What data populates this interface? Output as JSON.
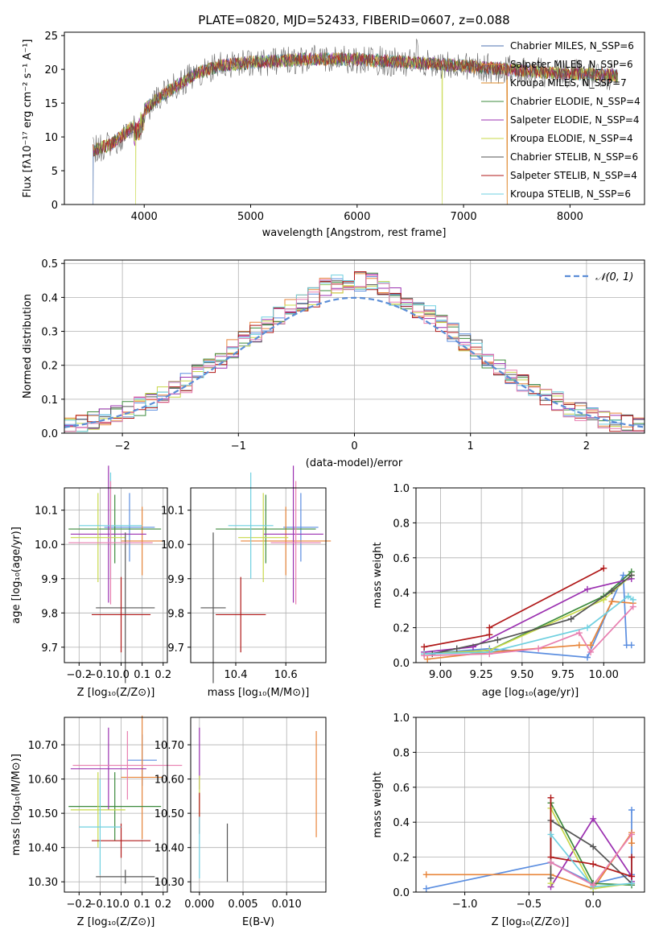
{
  "figure_title": "PLATE=0820, MJD=52433, FIBERID=0607, z=0.088",
  "colors": {
    "chabrier_miles": "#4c72b0",
    "salpeter_miles": "#e8853a",
    "kroupa_miles": "#dd8a2a",
    "chabrier_elodie": "#3d8b3d",
    "salpeter_elodie": "#9b30b0",
    "kroupa_elodie": "#c8d84a",
    "chabrier_stelib": "#555555",
    "salpeter_stelib": "#b01818",
    "kroupa_stelib": "#6fd0e0",
    "normal_curve": "#5b8dd6",
    "extra_pink": "#e87fb0",
    "extra_blue": "#5b8ee0"
  },
  "chart_data": [
    {
      "id": "spectrum",
      "type": "line",
      "title": "PLATE=0820, MJD=52433, FIBERID=0607, z=0.088",
      "xlabel": "wavelength [Angstrom, rest frame]",
      "ylabel": "Flux [fλ10⁻¹⁷ erg cm⁻² s⁻¹ A⁻¹]",
      "xlim": [
        3250,
        8700
      ],
      "ylim": [
        0,
        25.5
      ],
      "xticks": [
        4000,
        5000,
        6000,
        7000,
        8000
      ],
      "yticks": [
        0,
        5,
        10,
        15,
        20,
        25
      ],
      "grid": false,
      "legend_position": "top-right",
      "legend": [
        {
          "label": "Chabrier MILES, N_SSP=6",
          "color": "#4c72b0"
        },
        {
          "label": "Salpeter MILES, N_SSP=6",
          "color": "#e8853a"
        },
        {
          "label": "Kroupa MILES, N_SSP=7",
          "color": "#dd8a2a"
        },
        {
          "label": "Chabrier ELODIE, N_SSP=4",
          "color": "#3d8b3d"
        },
        {
          "label": "Salpeter ELODIE, N_SSP=4",
          "color": "#9b30b0"
        },
        {
          "label": "Kroupa ELODIE, N_SSP=4",
          "color": "#c8d84a"
        },
        {
          "label": "Chabrier STELIB, N_SSP=6",
          "color": "#555555"
        },
        {
          "label": "Salpeter STELIB, N_SSP=4",
          "color": "#b01818"
        },
        {
          "label": "Kroupa STELIB, N_SSP=6",
          "color": "#6fd0e0"
        }
      ],
      "continuum": [
        [
          3520,
          8.0
        ],
        [
          3700,
          9.0
        ],
        [
          3850,
          11.0
        ],
        [
          3950,
          12.5
        ],
        [
          4000,
          14.0
        ],
        [
          4150,
          16.0
        ],
        [
          4300,
          17.5
        ],
        [
          4500,
          19.5
        ],
        [
          4700,
          20.5
        ],
        [
          5000,
          21.0
        ],
        [
          5500,
          21.5
        ],
        [
          6000,
          21.5
        ],
        [
          6500,
          21.0
        ],
        [
          7000,
          20.5
        ],
        [
          7400,
          20.0
        ],
        [
          7800,
          19.5
        ],
        [
          8200,
          19.3
        ],
        [
          8450,
          19.0
        ]
      ]
    },
    {
      "id": "residuals",
      "type": "line",
      "xlabel": "(data-model)/error",
      "ylabel": "Normed distribution",
      "xlim": [
        -2.5,
        2.5
      ],
      "ylim": [
        0,
        0.51
      ],
      "xticks": [
        -2,
        -1,
        0,
        1,
        2
      ],
      "yticks": [
        0.0,
        0.1,
        0.2,
        0.3,
        0.4,
        0.5
      ],
      "grid": true,
      "legend_position": "top-right",
      "legend": [
        {
          "label": "𝒩(0, 1)",
          "color": "#5b8dd6",
          "style": "dashed"
        }
      ]
    },
    {
      "id": "age_vs_Z",
      "type": "errorbar",
      "xlabel": "Z [log₁₀(Z/Z⊙)]",
      "ylabel": "age  [log₁₀(age/yr)]",
      "xlim": [
        -0.27,
        0.22
      ],
      "ylim": [
        9.655,
        10.165
      ],
      "xticks": [
        -0.2,
        -0.1,
        0.0,
        0.1,
        0.2
      ],
      "yticks": [
        9.7,
        9.8,
        9.9,
        10.0,
        10.1
      ],
      "grid": true,
      "points": [
        {
          "x": 0.04,
          "y": 10.05,
          "xerr": 0.12,
          "yerr": 0.1,
          "color": "#5b8ee0"
        },
        {
          "x": 0.1,
          "y": 10.01,
          "xerr": 0.1,
          "yerr": 0.1,
          "color": "#e8853a"
        },
        {
          "x": -0.03,
          "y": 10.045,
          "xerr": 0.22,
          "yerr": 0.1,
          "color": "#3d8b3d"
        },
        {
          "x": -0.06,
          "y": 10.03,
          "xerr": 0.18,
          "yerr": 0.2,
          "color": "#9b30b0"
        },
        {
          "x": -0.11,
          "y": 10.02,
          "xerr": 0.13,
          "yerr": 0.13,
          "color": "#c8d84a"
        },
        {
          "x": 0.02,
          "y": 9.815,
          "xerr": 0.14,
          "yerr": 0.22,
          "color": "#555555"
        },
        {
          "x": 0.0,
          "y": 9.795,
          "xerr": 0.14,
          "yerr": 0.11,
          "color": "#b01818"
        },
        {
          "x": -0.05,
          "y": 10.055,
          "xerr": 0.15,
          "yerr": 0.155,
          "color": "#6fd0e0"
        },
        {
          "x": -0.05,
          "y": 10.005,
          "xerr": 0.2,
          "yerr": 0.18,
          "color": "#e87fb0"
        }
      ]
    },
    {
      "id": "age_vs_mass",
      "type": "errorbar",
      "xlabel": "mass [log₁₀(M/M⊙)]",
      "ylabel": "",
      "xlim": [
        10.22,
        10.76
      ],
      "ylim": [
        9.655,
        10.165
      ],
      "xticks": [
        10.4,
        10.6
      ],
      "yticks": [
        9.7,
        9.8,
        9.9,
        10.0,
        10.1
      ],
      "grid": true,
      "points": [
        {
          "x": 10.66,
          "y": 10.05,
          "xerr": 0.07,
          "yerr": 0.1,
          "color": "#5b8ee0"
        },
        {
          "x": 10.6,
          "y": 10.01,
          "xerr": 0.18,
          "yerr": 0.1,
          "color": "#e8853a"
        },
        {
          "x": 10.52,
          "y": 10.045,
          "xerr": 0.2,
          "yerr": 0.1,
          "color": "#3d8b3d"
        },
        {
          "x": 10.63,
          "y": 10.03,
          "xerr": 0.12,
          "yerr": 0.2,
          "color": "#9b30b0"
        },
        {
          "x": 10.51,
          "y": 10.02,
          "xerr": 0.1,
          "yerr": 0.13,
          "color": "#c8d84a"
        },
        {
          "x": 10.31,
          "y": 9.815,
          "xerr": 0.05,
          "yerr": 0.22,
          "color": "#555555"
        },
        {
          "x": 10.42,
          "y": 9.795,
          "xerr": 0.1,
          "yerr": 0.11,
          "color": "#b01818"
        },
        {
          "x": 10.46,
          "y": 10.055,
          "xerr": 0.09,
          "yerr": 0.155,
          "color": "#6fd0e0"
        },
        {
          "x": 10.64,
          "y": 10.005,
          "xerr": 0.1,
          "yerr": 0.18,
          "color": "#e87fb0"
        }
      ]
    },
    {
      "id": "weight_vs_age",
      "type": "line",
      "xlabel": "age  [log₁₀(age/yr)]",
      "ylabel": "mass weight",
      "xlim": [
        8.85,
        10.25
      ],
      "ylim": [
        0.0,
        1.0
      ],
      "xticks": [
        9.0,
        9.25,
        9.5,
        9.75,
        10.0
      ],
      "yticks": [
        0.0,
        0.2,
        0.4,
        0.6,
        0.8,
        1.0
      ],
      "grid": true,
      "series": [
        {
          "color": "#5b8ee0",
          "x": [
            8.9,
            9.3,
            9.9,
            10.12,
            10.14,
            10.17
          ],
          "y": [
            0.05,
            0.08,
            0.03,
            0.5,
            0.1,
            0.1
          ]
        },
        {
          "color": "#e8853a",
          "x": [
            8.92,
            9.3,
            9.85,
            9.92,
            10.05,
            10.18
          ],
          "y": [
            0.02,
            0.06,
            0.1,
            0.1,
            0.35,
            0.34
          ]
        },
        {
          "color": "#3d8b3d",
          "x": [
            8.9,
            9.3,
            10.0,
            10.17
          ],
          "y": [
            0.05,
            0.07,
            0.38,
            0.52
          ]
        },
        {
          "color": "#9b30b0",
          "x": [
            8.9,
            9.2,
            9.9,
            10.17
          ],
          "y": [
            0.06,
            0.09,
            0.42,
            0.48
          ]
        },
        {
          "color": "#c8d84a",
          "x": [
            8.9,
            9.3,
            10.0,
            10.17
          ],
          "y": [
            0.05,
            0.07,
            0.36,
            0.5
          ]
        },
        {
          "color": "#555555",
          "x": [
            8.95,
            9.1,
            9.35,
            9.8,
            10.05,
            10.17
          ],
          "y": [
            0.05,
            0.08,
            0.13,
            0.25,
            0.41,
            0.5
          ]
        },
        {
          "color": "#b01818",
          "x": [
            8.9,
            9.3,
            9.3,
            10.0
          ],
          "y": [
            0.09,
            0.16,
            0.2,
            0.54
          ]
        },
        {
          "color": "#6fd0e0",
          "x": [
            8.9,
            9.3,
            9.9,
            10.15,
            10.18
          ],
          "y": [
            0.05,
            0.06,
            0.2,
            0.38,
            0.36
          ]
        },
        {
          "color": "#e87fb0",
          "x": [
            8.9,
            9.3,
            9.6,
            9.85,
            9.92,
            10.18
          ],
          "y": [
            0.04,
            0.05,
            0.08,
            0.17,
            0.06,
            0.32
          ]
        }
      ]
    },
    {
      "id": "mass_vs_Z",
      "type": "errorbar",
      "xlabel": "Z [log₁₀(Z/Z⊙)]",
      "ylabel": "mass [log₁₀(M/M⊙)]",
      "xlim": [
        -0.27,
        0.22
      ],
      "ylim": [
        10.27,
        10.78
      ],
      "xticks": [
        -0.2,
        -0.1,
        0.0,
        0.1,
        0.2
      ],
      "yticks": [
        10.3,
        10.4,
        10.5,
        10.6,
        10.7
      ],
      "grid": true,
      "points": [
        {
          "x": 0.1,
          "y": 10.655,
          "xerr": 0.07,
          "yerr": 0.075,
          "color": "#5b8ee0"
        },
        {
          "x": 0.1,
          "y": 10.605,
          "xerr": 0.1,
          "yerr": 0.18,
          "color": "#e8853a"
        },
        {
          "x": -0.03,
          "y": 10.52,
          "xerr": 0.22,
          "yerr": 0.1,
          "color": "#3d8b3d"
        },
        {
          "x": -0.06,
          "y": 10.63,
          "xerr": 0.18,
          "yerr": 0.12,
          "color": "#9b30b0"
        },
        {
          "x": -0.11,
          "y": 10.51,
          "xerr": 0.13,
          "yerr": 0.11,
          "color": "#c8d84a"
        },
        {
          "x": 0.02,
          "y": 10.315,
          "xerr": 0.14,
          "yerr": 0.02,
          "color": "#555555"
        },
        {
          "x": 0.0,
          "y": 10.42,
          "xerr": 0.14,
          "yerr": 0.05,
          "color": "#b01818"
        },
        {
          "x": -0.1,
          "y": 10.46,
          "xerr": 0.1,
          "yerr": 0.14,
          "color": "#6fd0e0"
        },
        {
          "x": 0.03,
          "y": 10.64,
          "xerr": 0.26,
          "yerr": 0.1,
          "color": "#e87fb0"
        }
      ]
    },
    {
      "id": "mass_vs_EBV",
      "type": "errorbar",
      "xlabel": "E(B-V)",
      "ylabel": "",
      "xlim": [
        -0.001,
        0.0145
      ],
      "ylim": [
        10.27,
        10.78
      ],
      "xticks": [
        0.0,
        0.005,
        0.01
      ],
      "xticklabels": [
        "0.000",
        "0.005",
        "0.010"
      ],
      "yticks": [
        10.3,
        10.4,
        10.5,
        10.6,
        10.7
      ],
      "grid": true,
      "points": [
        {
          "x": 0.0,
          "y": 10.66,
          "xerr": 0,
          "yerr": 0.09,
          "color": "#9b30b0"
        },
        {
          "x": 0.0,
          "y": 10.55,
          "xerr": 0,
          "yerr": 0.06,
          "color": "#c8d84a"
        },
        {
          "x": 0.0,
          "y": 10.5,
          "xerr": 0,
          "yerr": 0.06,
          "color": "#b01818"
        },
        {
          "x": 0.0,
          "y": 10.4,
          "xerr": 0,
          "yerr": 0.09,
          "color": "#6fd0e0"
        },
        {
          "x": 0.0032,
          "y": 10.385,
          "xerr": 0,
          "yerr": 0.085,
          "color": "#555555"
        },
        {
          "x": 0.0134,
          "y": 10.585,
          "xerr": 0,
          "yerr": 0.155,
          "color": "#e8853a"
        }
      ]
    },
    {
      "id": "weight_vs_Z",
      "type": "line",
      "xlabel": "Z [log₁₀(Z/Z⊙)]",
      "ylabel": "mass weight",
      "xlim": [
        -1.38,
        0.4
      ],
      "ylim": [
        0.0,
        1.0
      ],
      "xticks": [
        -1.0,
        -0.5,
        0.0
      ],
      "yticks": [
        0.0,
        0.2,
        0.4,
        0.6,
        0.8,
        1.0
      ],
      "grid": true,
      "series": [
        {
          "color": "#5b8ee0",
          "x": [
            -1.3,
            -0.33,
            0.0,
            0.3,
            0.3
          ],
          "y": [
            0.02,
            0.17,
            0.05,
            0.1,
            0.47
          ]
        },
        {
          "color": "#e8853a",
          "x": [
            -1.3,
            -0.33,
            0.0,
            0.3,
            0.3
          ],
          "y": [
            0.1,
            0.1,
            0.02,
            0.34,
            0.28
          ]
        },
        {
          "color": "#3d8b3d",
          "x": [
            -0.33,
            0.0,
            0.3
          ],
          "y": [
            0.51,
            0.05,
            0.04
          ]
        },
        {
          "color": "#9b30b0",
          "x": [
            -0.33,
            0.0,
            0.3,
            0.3
          ],
          "y": [
            0.03,
            0.42,
            0.09,
            0.06
          ]
        },
        {
          "color": "#c8d84a",
          "x": [
            -0.33,
            -0.33,
            0.0,
            0.3
          ],
          "y": [
            0.05,
            0.48,
            0.02,
            0.05
          ]
        },
        {
          "color": "#555555",
          "x": [
            -0.33,
            -0.33,
            0.0,
            0.3
          ],
          "y": [
            0.08,
            0.41,
            0.26,
            0.05
          ]
        },
        {
          "color": "#b01818",
          "x": [
            -0.33,
            -0.33,
            0.0,
            0.3,
            0.3
          ],
          "y": [
            0.54,
            0.2,
            0.16,
            0.09,
            0.2
          ]
        },
        {
          "color": "#6fd0e0",
          "x": [
            -0.33,
            0.0,
            0.3
          ],
          "y": [
            0.33,
            0.03,
            0.05
          ]
        },
        {
          "color": "#e87fb0",
          "x": [
            -0.33,
            0.0,
            0.3
          ],
          "y": [
            0.17,
            0.04,
            0.33
          ]
        }
      ]
    }
  ]
}
